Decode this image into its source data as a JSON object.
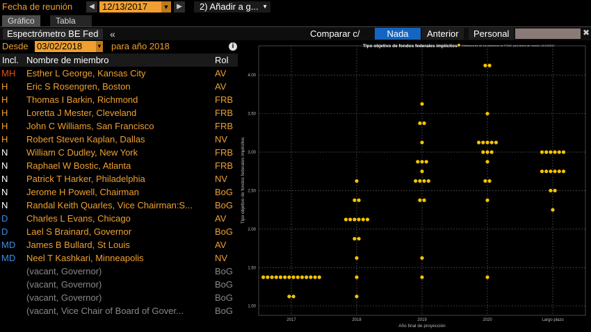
{
  "topbar": {
    "meeting_label": "Fecha de reunión",
    "prev_icon": "chevron-left-icon",
    "next_icon": "chevron-right-icon",
    "date_value": "12/13/2017",
    "add_label": "2) Añadir a g..."
  },
  "tabs": [
    {
      "label": "Gráfico",
      "active": true
    },
    {
      "label": "Tabla",
      "active": false
    }
  ],
  "header": {
    "title": "Espectrómetro BE Fed",
    "collapse": "«",
    "compare_label": "Comparar c/",
    "options": [
      {
        "label": "Nada",
        "selected": true
      },
      {
        "label": "Anterior",
        "selected": false
      },
      {
        "label": "Personal",
        "selected": false
      }
    ]
  },
  "filter": {
    "from_label": "Desde",
    "from_value": "03/02/2018",
    "for_label": "para año 2018"
  },
  "table": {
    "columns": [
      "Incl.",
      "Nombre de miembro",
      "Rol"
    ],
    "rows": [
      {
        "incl": "MH",
        "name": "Esther L George, Kansas City",
        "rol": "AV",
        "incl_color": "#e84a1a",
        "name_color": "#f0a030"
      },
      {
        "incl": "H",
        "name": "Eric S Rosengren, Boston",
        "rol": "AV",
        "incl_color": "#f0a030",
        "name_color": "#f0a030"
      },
      {
        "incl": "H",
        "name": "Thomas I Barkin, Richmond",
        "rol": "FRB",
        "incl_color": "#f0a030",
        "name_color": "#f0a030"
      },
      {
        "incl": "H",
        "name": "Loretta J Mester, Cleveland",
        "rol": "FRB",
        "incl_color": "#f0a030",
        "name_color": "#f0a030"
      },
      {
        "incl": "H",
        "name": "John C Williams, San Francisco",
        "rol": "FRB",
        "incl_color": "#f0a030",
        "name_color": "#f0a030"
      },
      {
        "incl": "H",
        "name": "Robert Steven Kaplan, Dallas",
        "rol": "NV",
        "incl_color": "#f0a030",
        "name_color": "#f0a030"
      },
      {
        "incl": "N",
        "name": "William C Dudley, New York",
        "rol": "FRB",
        "incl_color": "#ffffff",
        "name_color": "#f0a030"
      },
      {
        "incl": "N",
        "name": "Raphael W Bostic, Atlanta",
        "rol": "FRB",
        "incl_color": "#ffffff",
        "name_color": "#f0a030"
      },
      {
        "incl": "N",
        "name": "Patrick T Harker, Philadelphia",
        "rol": "NV",
        "incl_color": "#ffffff",
        "name_color": "#f0a030"
      },
      {
        "incl": "N",
        "name": "Jerome H Powell, Chairman",
        "rol": "BoG",
        "incl_color": "#ffffff",
        "name_color": "#f0a030"
      },
      {
        "incl": "N",
        "name": "Randal Keith Quarles, Vice Chairman:S...",
        "rol": "BoG",
        "incl_color": "#ffffff",
        "name_color": "#f0a030"
      },
      {
        "incl": "D",
        "name": "Charles L Evans, Chicago",
        "rol": "AV",
        "incl_color": "#3a8ee6",
        "name_color": "#f0a030"
      },
      {
        "incl": "D",
        "name": "Lael S Brainard, Governor",
        "rol": "BoG",
        "incl_color": "#3a8ee6",
        "name_color": "#f0a030"
      },
      {
        "incl": "MD",
        "name": "James B Bullard, St Louis",
        "rol": "AV",
        "incl_color": "#3a8ee6",
        "name_color": "#f0a030"
      },
      {
        "incl": "MD",
        "name": "Neel T Kashkari, Minneapolis",
        "rol": "NV",
        "incl_color": "#3a8ee6",
        "name_color": "#f0a030"
      },
      {
        "incl": "",
        "name": "(vacant, Governor)",
        "rol": "BoG",
        "incl_color": "#888888",
        "name_color": "#888888"
      },
      {
        "incl": "",
        "name": "(vacant, Governor)",
        "rol": "BoG",
        "incl_color": "#888888",
        "name_color": "#888888"
      },
      {
        "incl": "",
        "name": "(vacant, Governor)",
        "rol": "BoG",
        "incl_color": "#888888",
        "name_color": "#888888"
      },
      {
        "incl": "",
        "name": "(vacant, Vice Chair of Board of Gover...",
        "rol": "BoG",
        "incl_color": "#888888",
        "name_color": "#888888"
      }
    ]
  },
  "colors": {
    "accent": "#f0a030",
    "selected": "#1565c0",
    "dot": "#f5c400",
    "grid": "#555555"
  },
  "chart_data": {
    "type": "scatter",
    "title": "Tipo objetivo de fondos federales implícitos",
    "legend": "Estimaciones de los miembros de FOMC para fecha de reunión 12/13/2017",
    "xlabel": "Año final de proyección",
    "ylabel": "Tipo objetivo de fondos federales implícitos",
    "categories": [
      "2017",
      "2018",
      "2019",
      "2020",
      "Largo plazo"
    ],
    "ylim": [
      0.88,
      4.38
    ],
    "yticks": [
      "1.00",
      "1.50",
      "2.00",
      "2.50",
      "3.00",
      "3.50",
      "4.00"
    ],
    "grid": true,
    "series": [
      {
        "points": [
          {
            "x": "2017",
            "y": 1.375,
            "count": 14
          },
          {
            "x": "2017",
            "y": 1.125,
            "count": 2
          },
          {
            "x": "2018",
            "y": 2.625,
            "count": 1
          },
          {
            "x": "2018",
            "y": 2.375,
            "count": 2
          },
          {
            "x": "2018",
            "y": 2.125,
            "count": 6
          },
          {
            "x": "2018",
            "y": 1.875,
            "count": 2
          },
          {
            "x": "2018",
            "y": 1.625,
            "count": 1
          },
          {
            "x": "2018",
            "y": 1.375,
            "count": 1
          },
          {
            "x": "2018",
            "y": 1.125,
            "count": 1
          },
          {
            "x": "2019",
            "y": 3.625,
            "count": 1
          },
          {
            "x": "2019",
            "y": 3.375,
            "count": 2
          },
          {
            "x": "2019",
            "y": 3.125,
            "count": 1
          },
          {
            "x": "2019",
            "y": 2.875,
            "count": 3
          },
          {
            "x": "2019",
            "y": 2.75,
            "count": 1
          },
          {
            "x": "2019",
            "y": 2.625,
            "count": 4
          },
          {
            "x": "2019",
            "y": 2.375,
            "count": 2
          },
          {
            "x": "2019",
            "y": 1.625,
            "count": 1
          },
          {
            "x": "2019",
            "y": 1.375,
            "count": 1
          },
          {
            "x": "2020",
            "y": 4.125,
            "count": 2
          },
          {
            "x": "2020",
            "y": 3.5,
            "count": 1
          },
          {
            "x": "2020",
            "y": 3.125,
            "count": 5
          },
          {
            "x": "2020",
            "y": 3.0,
            "count": 3
          },
          {
            "x": "2020",
            "y": 2.875,
            "count": 1
          },
          {
            "x": "2020",
            "y": 2.625,
            "count": 2
          },
          {
            "x": "2020",
            "y": 2.375,
            "count": 1
          },
          {
            "x": "2020",
            "y": 1.375,
            "count": 1
          },
          {
            "x": "Largo plazo",
            "y": 3.0,
            "count": 6
          },
          {
            "x": "Largo plazo",
            "y": 2.75,
            "count": 6
          },
          {
            "x": "Largo plazo",
            "y": 2.5,
            "count": 2
          },
          {
            "x": "Largo plazo",
            "y": 2.25,
            "count": 1
          }
        ]
      }
    ]
  }
}
